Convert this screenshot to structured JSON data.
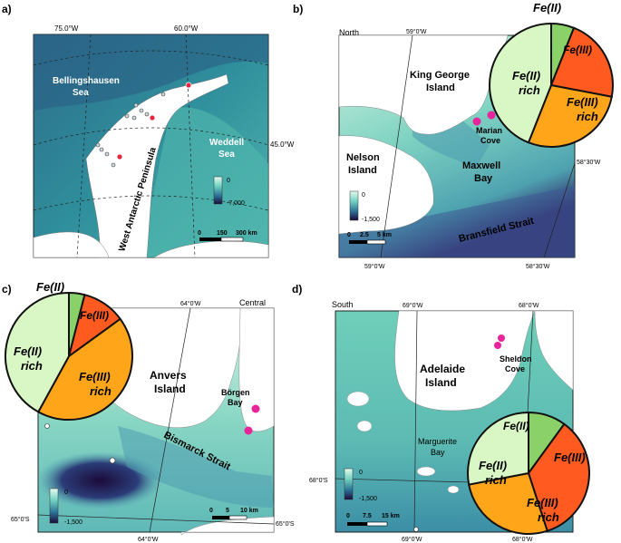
{
  "panels": {
    "a": {
      "letter": "a)",
      "lon": [
        "75.0°W",
        "60.0°W"
      ],
      "lat": "45.0°W",
      "seas": [
        "Bellingshausen",
        "Sea",
        "Weddell",
        "Sea"
      ],
      "peninsula": "West Antarctic Peninsula",
      "legend": {
        "max": "0",
        "min": "-7,000"
      },
      "scale": [
        "0",
        "150",
        "300 km"
      ]
    },
    "b": {
      "letter": "b)",
      "region": "North",
      "lon_top": "59°0'W",
      "lon_bottom": [
        "59°0'W",
        "58°30'W"
      ],
      "lat": "58°30'W",
      "places": [
        "King George",
        "Island",
        "Marian",
        "Cove",
        "Nelson",
        "Island",
        "Maxwell",
        "Bay",
        "Bransfield Strait"
      ],
      "legend": {
        "max": "0",
        "min": "-1,500"
      },
      "scale": [
        "0",
        "2.5",
        "5 km"
      ],
      "pie": {
        "feII": "Fe(II)",
        "feIII": "Fe(III)",
        "feIIrich1": "Fe(II)",
        "feIIrich2": "rich",
        "feIIIrich1": "Fe(III)",
        "feIIIrich2": "rich"
      }
    },
    "c": {
      "letter": "c)",
      "region": "Central",
      "lon_top": "64°0'W",
      "lon_bottom": "64°0'W",
      "lat_left": "65°0'S",
      "lat_right": "65°0'S",
      "places": [
        "Anvers",
        "Island",
        "Börgen",
        "Bay",
        "Bismarck Strait"
      ],
      "legend": {
        "max": "0",
        "min": "-1,500"
      },
      "scale": [
        "0",
        "5",
        "10 km"
      ],
      "pie": {
        "feII": "Fe(II)",
        "feIII": "Fe(III)",
        "feIIrich1": "Fe(II)",
        "feIIrich2": "rich",
        "feIIIrich1": "Fe(III)",
        "feIIIrich2": "rich"
      }
    },
    "d": {
      "letter": "d)",
      "region": "South",
      "lon_top": [
        "69°0'W",
        "68°0'W"
      ],
      "lon_bottom": [
        "69°0'W",
        "68°0'W"
      ],
      "lat": "68°0'S",
      "places": [
        "Adelaide",
        "Island",
        "Sheldon",
        "Cove",
        "Marguerite",
        "Bay"
      ],
      "legend": {
        "max": "0",
        "min": "-1,500"
      },
      "scale": [
        "0",
        "7.5",
        "15 km"
      ],
      "pie": {
        "feII": "Fe(II)",
        "feIII": "Fe(III)",
        "feIIrich1": "Fe(II)",
        "feIIrich2": "rich",
        "feIIIrich1": "Fe(III)",
        "feIIIrich2": "rich"
      }
    }
  },
  "pies": {
    "b": [
      {
        "key": "feII",
        "fraction": 0.06,
        "color": "#8bd16a"
      },
      {
        "key": "feIII",
        "fraction": 0.22,
        "color": "#ff5a1f"
      },
      {
        "key": "feIIIrich",
        "fraction": 0.28,
        "color": "#ffa51a"
      },
      {
        "key": "feIIrich",
        "fraction": 0.44,
        "color": "#d9f7c4"
      }
    ],
    "c": [
      {
        "key": "feII",
        "fraction": 0.04,
        "color": "#8bd16a"
      },
      {
        "key": "feIII",
        "fraction": 0.11,
        "color": "#ff5a1f"
      },
      {
        "key": "feIIIrich",
        "fraction": 0.43,
        "color": "#ffa51a"
      },
      {
        "key": "feIIrich",
        "fraction": 0.42,
        "color": "#d9f7c4"
      }
    ],
    "d": [
      {
        "key": "feII",
        "fraction": 0.1,
        "color": "#8bd16a"
      },
      {
        "key": "feIII",
        "fraction": 0.35,
        "color": "#ff5a1f"
      },
      {
        "key": "feIIIrich",
        "fraction": 0.27,
        "color": "#ffa51a"
      },
      {
        "key": "feIIrich",
        "fraction": 0.28,
        "color": "#d9f7c4"
      }
    ]
  },
  "colors": {
    "land": "#ffffff",
    "sample": "#e8259a",
    "ocean_deep": "#1a0f3a",
    "ocean_shallow": "#c9f2dc"
  }
}
